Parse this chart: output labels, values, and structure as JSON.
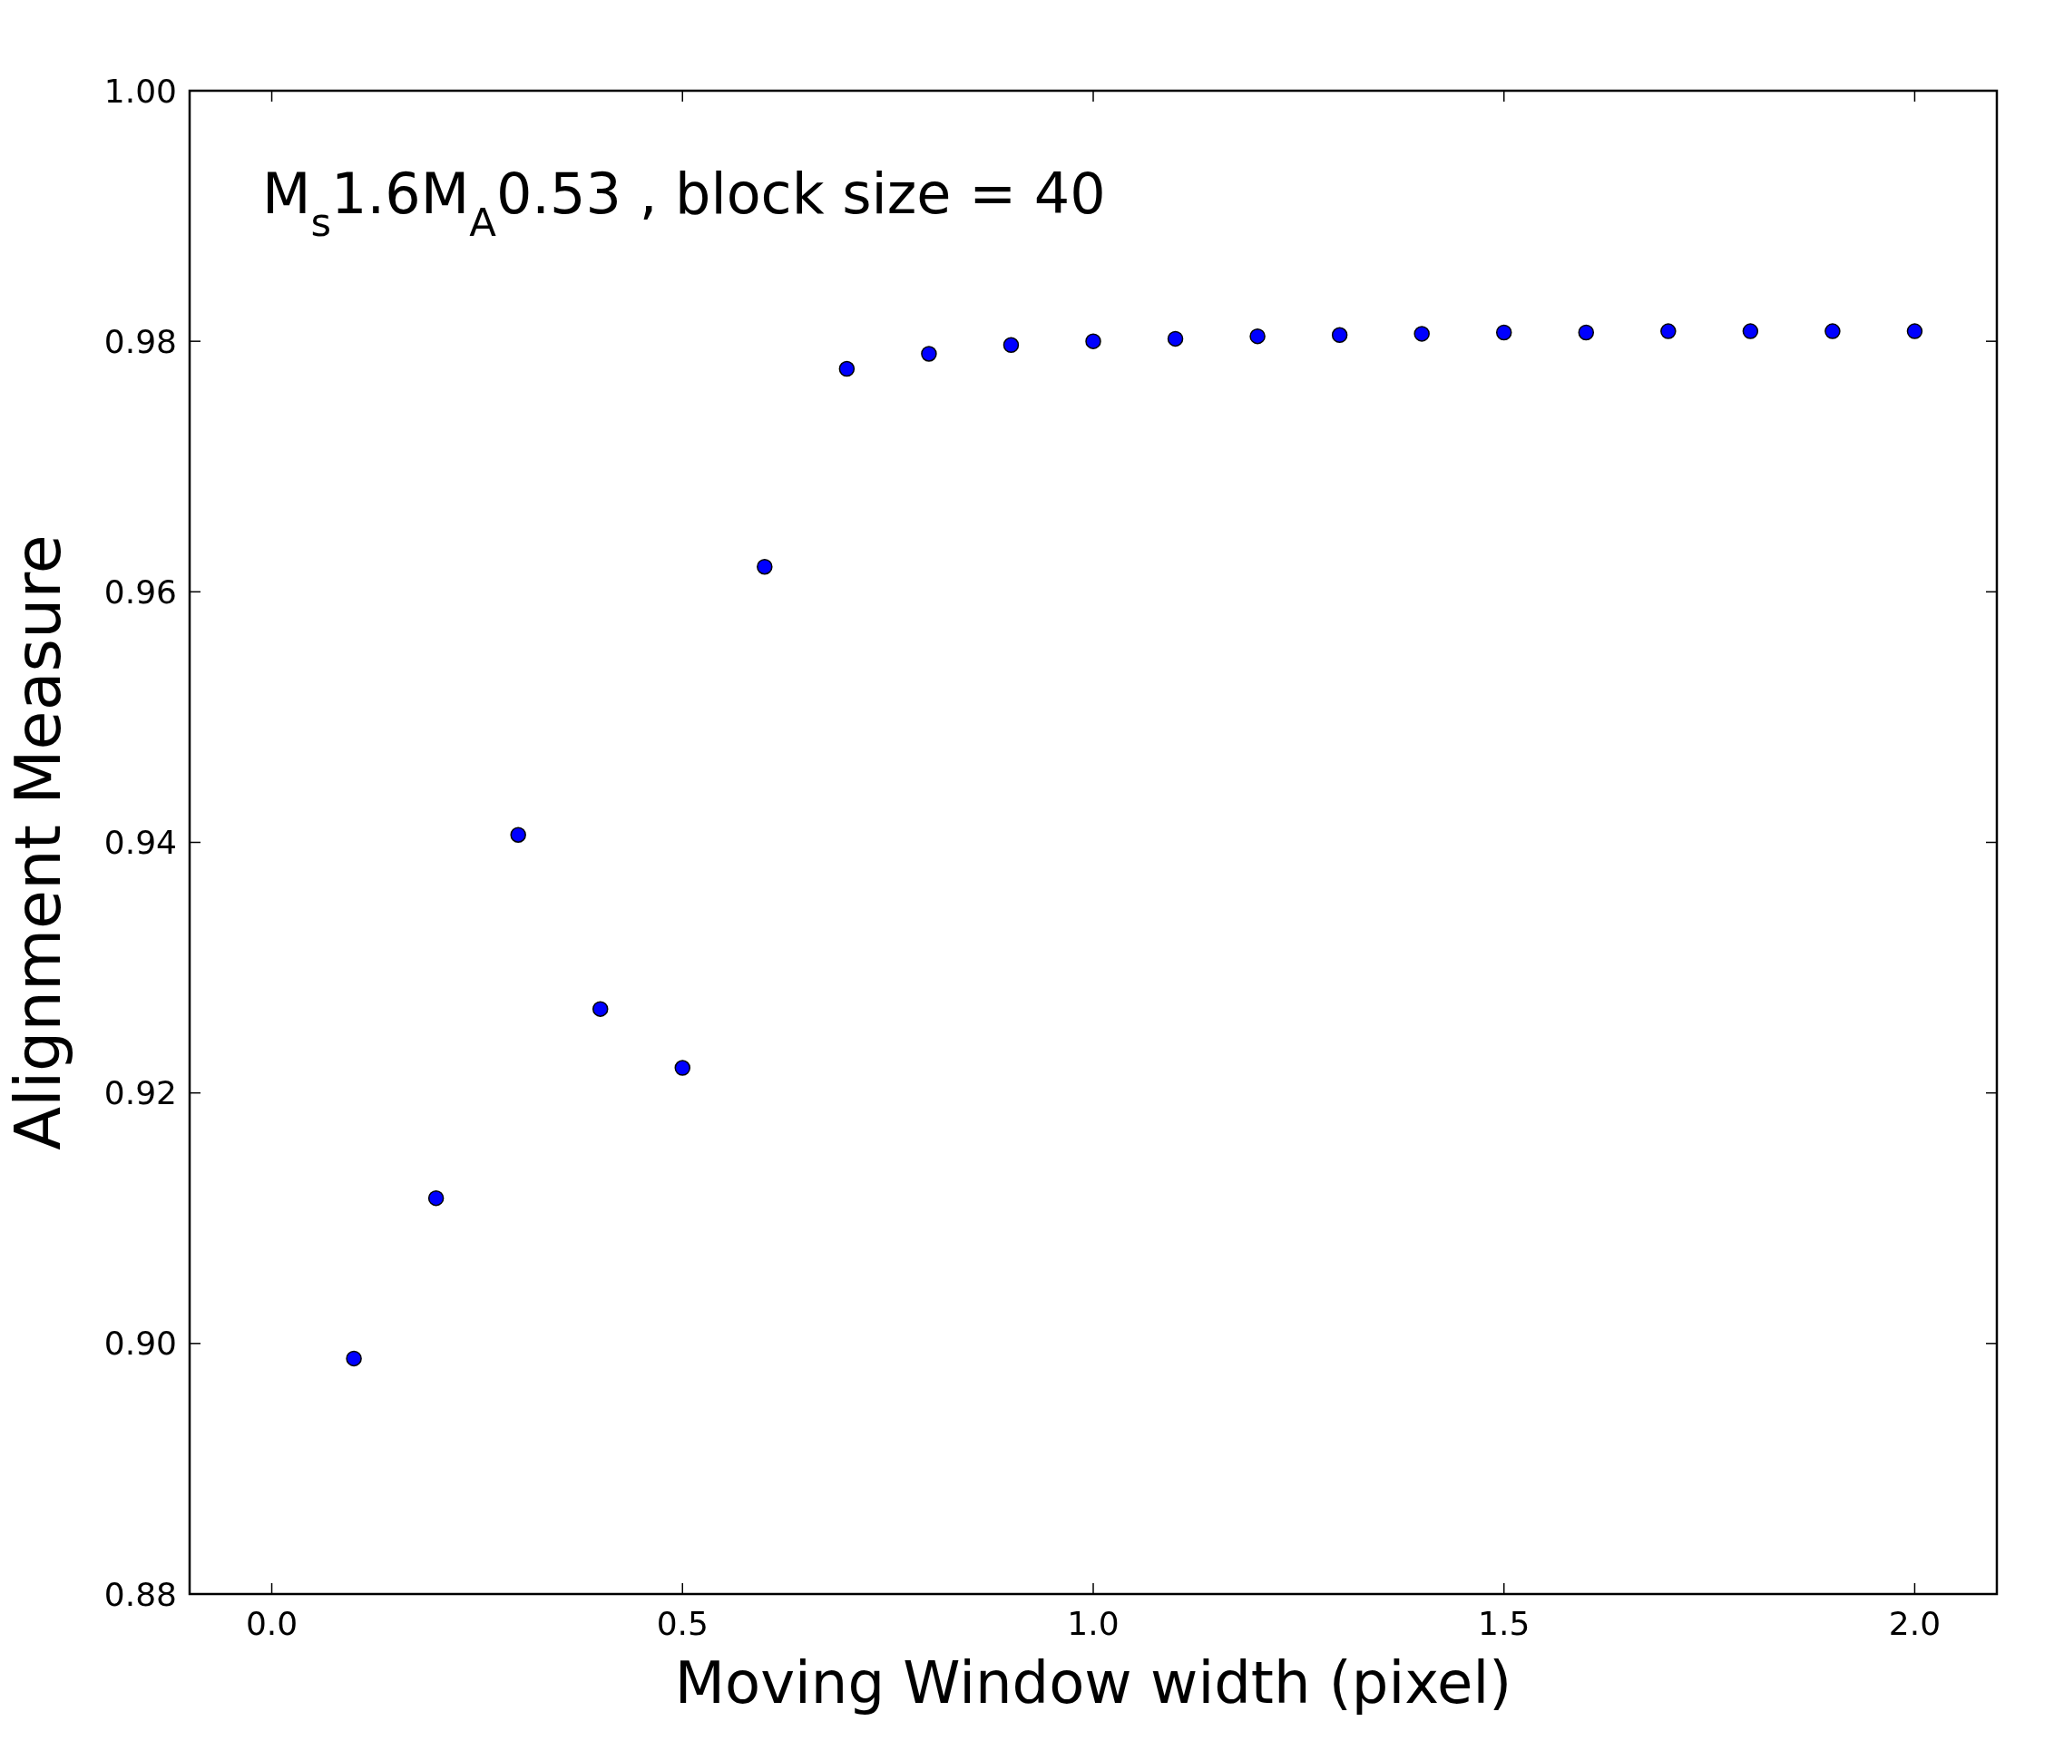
{
  "chart_data": {
    "type": "scatter",
    "xlabel": "Moving Window width (pixel)",
    "ylabel": "Alignment Measure",
    "annotations": [
      "M$_{s}$1.6M$_{A}$0.53 , block size = 40"
    ],
    "x": [
      0.1,
      0.2,
      0.3,
      0.4,
      0.5,
      0.6,
      0.7,
      0.8,
      0.9,
      1.0,
      1.1,
      1.2,
      1.3,
      1.4,
      1.5,
      1.6,
      1.7,
      1.8,
      1.9,
      2.0
    ],
    "series": [
      {
        "color": "#0000ff",
        "values": [
          0.8988,
          0.9116,
          0.9406,
          0.9267,
          0.922,
          0.962,
          0.9778,
          0.979,
          0.9797,
          0.98,
          0.9802,
          0.9804,
          0.9805,
          0.9806,
          0.9807,
          0.9807,
          0.9808,
          0.9808,
          0.9808,
          0.9808
        ]
      }
    ],
    "xlim": [
      -0.1,
      2.1
    ],
    "xticks": [
      {
        "value": 0,
        "label": "0.0"
      },
      0.5,
      {
        "value": 1,
        "label": "1.0"
      },
      1.5,
      {
        "value": 2,
        "label": "2.0"
      }
    ],
    "ylim": [
      0.88,
      1.0
    ],
    "yticks": [
      0.88,
      {
        "value": 0.9,
        "label": "0.90"
      },
      0.92,
      0.94,
      0.96,
      0.98,
      {
        "value": 1.0,
        "label": "1.00"
      }
    ],
    "marker": "circle",
    "grid": false
  }
}
